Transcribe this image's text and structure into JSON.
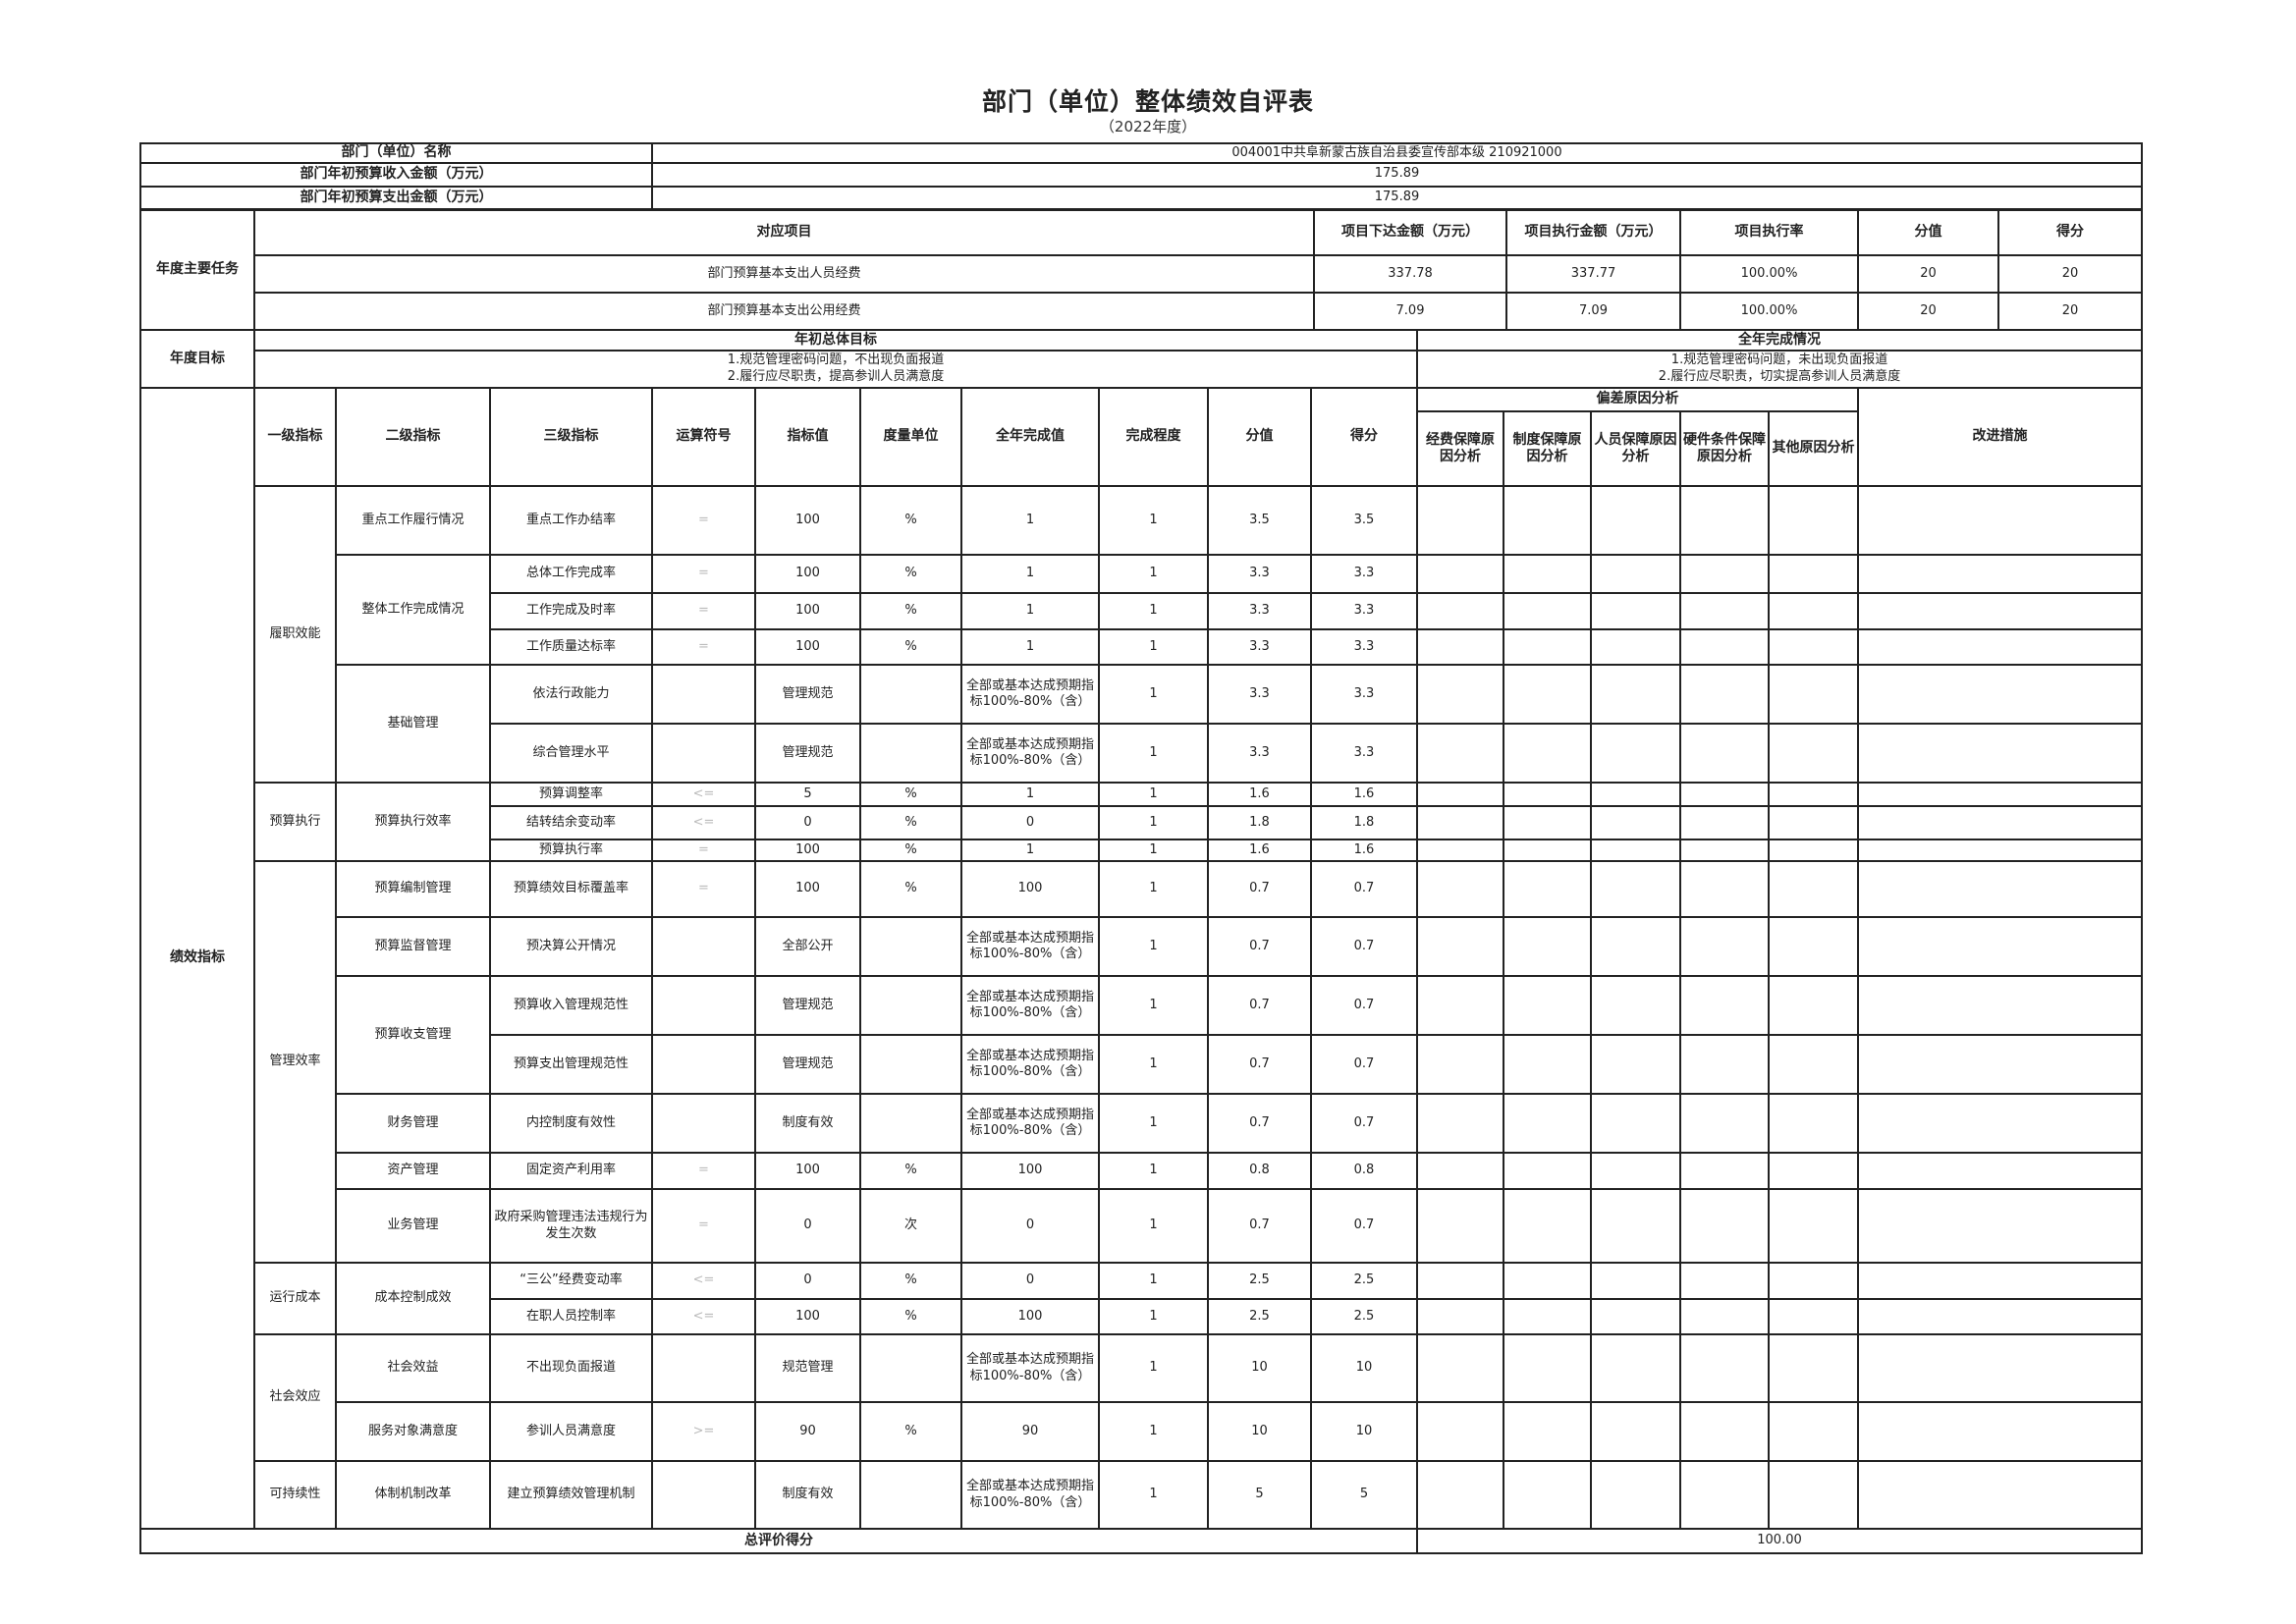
{
  "title": "部门（单位）整体绩效自评表",
  "subtitle": "（2022年度）",
  "basic": {
    "name_label": "部门（单位）名称",
    "name_value": "004001中共阜新蒙古族自治县委宣传部本级 210921000",
    "income_label": "部门年初预算收入金额（万元）",
    "income_value": "175.89",
    "expense_label": "部门年初预算支出金额（万元）",
    "expense_value": "175.89"
  },
  "tasks": {
    "section_label": "年度主要任务",
    "headers": [
      "对应项目",
      "项目下达金额（万元）",
      "项目执行金额（万元）",
      "项目执行率",
      "分值",
      "得分"
    ],
    "rows": [
      [
        "部门预算基本支出人员经费",
        "337.78",
        "337.77",
        "100.00%",
        "20",
        "20"
      ],
      [
        "部门预算基本支出公用经费",
        "7.09",
        "7.09",
        "100.00%",
        "20",
        "20"
      ]
    ]
  },
  "goals": {
    "section_label": "年度目标",
    "initial_header": "年初总体目标",
    "initial_lines": [
      "1.规范管理密码问题，不出现负面报道",
      "2.履行应尽职责，提高参训人员满意度"
    ],
    "complete_header": "全年完成情况",
    "complete_lines": [
      "1.规范管理密码问题，未出现负面报道",
      "2.履行应尽职责，切实提高参训人员满意度"
    ]
  },
  "indicators": {
    "section_label": "绩效指标",
    "headers": [
      "一级指标",
      "二级指标",
      "三级指标",
      "运算符号",
      "指标值",
      "度量单位",
      "全年完成值",
      "完成程度",
      "分值",
      "得分"
    ],
    "deviation_header": "偏差原因分析",
    "deviation_columns": [
      "经费保障原因分析",
      "制度保障原因分析",
      "人员保障原因分析",
      "硬件条件保障原因分析",
      "其他原因分析"
    ],
    "improve_header": "改进措施",
    "groups": [
      {
        "name": "履职效能",
        "subs": [
          {
            "name": "重点工作履行情况",
            "items": [
              {
                "l3": "重点工作办结率",
                "op": "=",
                "value": "100",
                "unit": "%",
                "done": "1",
                "degree": "1",
                "score": "3.5",
                "got": "3.5"
              }
            ]
          },
          {
            "name": "整体工作完成情况",
            "items": [
              {
                "l3": "总体工作完成率",
                "op": "=",
                "value": "100",
                "unit": "%",
                "done": "1",
                "degree": "1",
                "score": "3.3",
                "got": "3.3"
              },
              {
                "l3": "工作完成及时率",
                "op": "=",
                "value": "100",
                "unit": "%",
                "done": "1",
                "degree": "1",
                "score": "3.3",
                "got": "3.3"
              },
              {
                "l3": "工作质量达标率",
                "op": "=",
                "value": "100",
                "unit": "%",
                "done": "1",
                "degree": "1",
                "score": "3.3",
                "got": "3.3"
              }
            ]
          },
          {
            "name": "基础管理",
            "items": [
              {
                "l3": "依法行政能力",
                "op": "",
                "value": "管理规范",
                "unit": "",
                "done": "全部或基本达成预期指标100%-80%（含）",
                "degree": "1",
                "score": "3.3",
                "got": "3.3"
              },
              {
                "l3": "综合管理水平",
                "op": "",
                "value": "管理规范",
                "unit": "",
                "done": "全部或基本达成预期指标100%-80%（含）",
                "degree": "1",
                "score": "3.3",
                "got": "3.3"
              }
            ]
          }
        ]
      },
      {
        "name": "预算执行",
        "subs": [
          {
            "name": "预算执行效率",
            "items": [
              {
                "l3": "预算调整率",
                "op": "<=",
                "value": "5",
                "unit": "%",
                "done": "1",
                "degree": "1",
                "score": "1.6",
                "got": "1.6"
              },
              {
                "l3": "结转结余变动率",
                "op": "<=",
                "value": "0",
                "unit": "%",
                "done": "0",
                "degree": "1",
                "score": "1.8",
                "got": "1.8"
              },
              {
                "l3": "预算执行率",
                "op": "=",
                "value": "100",
                "unit": "%",
                "done": "1",
                "degree": "1",
                "score": "1.6",
                "got": "1.6"
              }
            ]
          }
        ]
      },
      {
        "name": "管理效率",
        "subs": [
          {
            "name": "预算编制管理",
            "items": [
              {
                "l3": "预算绩效目标覆盖率",
                "op": "=",
                "value": "100",
                "unit": "%",
                "done": "100",
                "degree": "1",
                "score": "0.7",
                "got": "0.7"
              }
            ]
          },
          {
            "name": "预算监督管理",
            "items": [
              {
                "l3": "预决算公开情况",
                "op": "",
                "value": "全部公开",
                "unit": "",
                "done": "全部或基本达成预期指标100%-80%（含）",
                "degree": "1",
                "score": "0.7",
                "got": "0.7"
              }
            ]
          },
          {
            "name": "预算收支管理",
            "items": [
              {
                "l3": "预算收入管理规范性",
                "op": "",
                "value": "管理规范",
                "unit": "",
                "done": "全部或基本达成预期指标100%-80%（含）",
                "degree": "1",
                "score": "0.7",
                "got": "0.7"
              },
              {
                "l3": "预算支出管理规范性",
                "op": "",
                "value": "管理规范",
                "unit": "",
                "done": "全部或基本达成预期指标100%-80%（含）",
                "degree": "1",
                "score": "0.7",
                "got": "0.7"
              }
            ]
          },
          {
            "name": "财务管理",
            "items": [
              {
                "l3": "内控制度有效性",
                "op": "",
                "value": "制度有效",
                "unit": "",
                "done": "全部或基本达成预期指标100%-80%（含）",
                "degree": "1",
                "score": "0.7",
                "got": "0.7"
              }
            ]
          },
          {
            "name": "资产管理",
            "items": [
              {
                "l3": "固定资产利用率",
                "op": "=",
                "value": "100",
                "unit": "%",
                "done": "100",
                "degree": "1",
                "score": "0.8",
                "got": "0.8"
              }
            ]
          },
          {
            "name": "业务管理",
            "items": [
              {
                "l3": "政府采购管理违法违规行为发生次数",
                "op": "=",
                "value": "0",
                "unit": "次",
                "done": "0",
                "degree": "1",
                "score": "0.7",
                "got": "0.7"
              }
            ]
          }
        ]
      },
      {
        "name": "运行成本",
        "subs": [
          {
            "name": "成本控制成效",
            "items": [
              {
                "l3": "“三公”经费变动率",
                "op": "<=",
                "value": "0",
                "unit": "%",
                "done": "0",
                "degree": "1",
                "score": "2.5",
                "got": "2.5"
              },
              {
                "l3": "在职人员控制率",
                "op": "<=",
                "value": "100",
                "unit": "%",
                "done": "100",
                "degree": "1",
                "score": "2.5",
                "got": "2.5"
              }
            ]
          }
        ]
      },
      {
        "name": "社会效应",
        "subs": [
          {
            "name": "社会效益",
            "items": [
              {
                "l3": "不出现负面报道",
                "op": "",
                "value": "规范管理",
                "unit": "",
                "done": "全部或基本达成预期指标100%-80%（含）",
                "degree": "1",
                "score": "10",
                "got": "10"
              }
            ]
          },
          {
            "name": "服务对象满意度",
            "items": [
              {
                "l3": "参训人员满意度",
                "op": ">=",
                "value": "90",
                "unit": "%",
                "done": "90",
                "degree": "1",
                "score": "10",
                "got": "10"
              }
            ]
          }
        ]
      },
      {
        "name": "可持续性",
        "subs": [
          {
            "name": "体制机制改革",
            "items": [
              {
                "l3": "建立预算绩效管理机制",
                "op": "",
                "value": "制度有效",
                "unit": "",
                "done": "全部或基本达成预期指标100%-80%（含）",
                "degree": "1",
                "score": "5",
                "got": "5"
              }
            ]
          }
        ]
      }
    ]
  },
  "total": {
    "label": "总评价得分",
    "value": "100.00"
  }
}
